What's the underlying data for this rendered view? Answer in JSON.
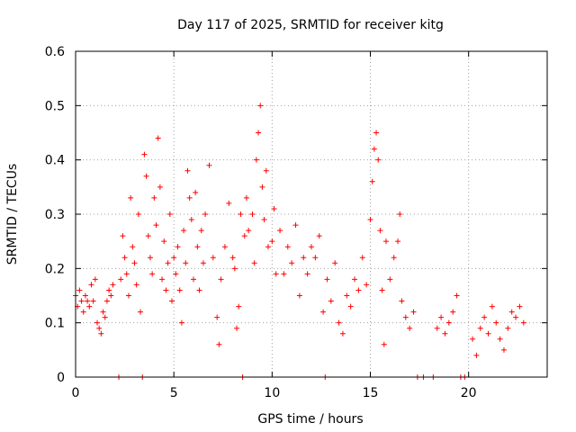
{
  "chart_data": {
    "type": "scatter",
    "title": "Day 117 of 2025, SRMTID for receiver kitg",
    "xlabel": "GPS time / hours",
    "ylabel": "SRMTID / TECUs",
    "xlim": [
      0,
      24
    ],
    "ylim": [
      0,
      0.6
    ],
    "xticks": [
      0,
      5,
      10,
      15,
      20
    ],
    "yticks": [
      0,
      0.1,
      0.2,
      0.3,
      0.4,
      0.5,
      0.6
    ],
    "xtick_labels": [
      "0",
      "5",
      "10",
      "15",
      "20"
    ],
    "ytick_labels": [
      "0",
      "0.1",
      "0.2",
      "0.3",
      "0.4",
      "0.5",
      "0.6"
    ],
    "grid": true,
    "marker": "+",
    "color": "#ff0000",
    "series": [
      {
        "name": "SRMTID",
        "points": [
          [
            0.0,
            0.15
          ],
          [
            0.1,
            0.13
          ],
          [
            0.2,
            0.16
          ],
          [
            0.3,
            0.14
          ],
          [
            0.4,
            0.12
          ],
          [
            0.5,
            0.15
          ],
          [
            0.6,
            0.14
          ],
          [
            0.7,
            0.13
          ],
          [
            0.8,
            0.17
          ],
          [
            0.9,
            0.14
          ],
          [
            1.0,
            0.18
          ],
          [
            1.1,
            0.1
          ],
          [
            1.2,
            0.09
          ],
          [
            1.3,
            0.08
          ],
          [
            1.4,
            0.12
          ],
          [
            1.5,
            0.11
          ],
          [
            1.6,
            0.14
          ],
          [
            1.7,
            0.16
          ],
          [
            1.8,
            0.15
          ],
          [
            1.9,
            0.17
          ],
          [
            2.2,
            0.0
          ],
          [
            2.3,
            0.18
          ],
          [
            2.4,
            0.26
          ],
          [
            2.5,
            0.22
          ],
          [
            2.6,
            0.19
          ],
          [
            2.7,
            0.15
          ],
          [
            2.8,
            0.33
          ],
          [
            2.9,
            0.24
          ],
          [
            3.0,
            0.21
          ],
          [
            3.1,
            0.17
          ],
          [
            3.2,
            0.3
          ],
          [
            3.3,
            0.12
          ],
          [
            3.4,
            0.0
          ],
          [
            3.5,
            0.41
          ],
          [
            3.6,
            0.37
          ],
          [
            3.7,
            0.26
          ],
          [
            3.8,
            0.22
          ],
          [
            3.9,
            0.19
          ],
          [
            4.0,
            0.33
          ],
          [
            4.1,
            0.28
          ],
          [
            4.2,
            0.44
          ],
          [
            4.3,
            0.35
          ],
          [
            4.4,
            0.18
          ],
          [
            4.5,
            0.25
          ],
          [
            4.6,
            0.16
          ],
          [
            4.7,
            0.21
          ],
          [
            4.8,
            0.3
          ],
          [
            4.9,
            0.14
          ],
          [
            5.0,
            0.22
          ],
          [
            5.1,
            0.19
          ],
          [
            5.2,
            0.24
          ],
          [
            5.3,
            0.16
          ],
          [
            5.4,
            0.1
          ],
          [
            5.5,
            0.27
          ],
          [
            5.6,
            0.21
          ],
          [
            5.7,
            0.38
          ],
          [
            5.8,
            0.33
          ],
          [
            5.9,
            0.29
          ],
          [
            6.0,
            0.18
          ],
          [
            6.1,
            0.34
          ],
          [
            6.2,
            0.24
          ],
          [
            6.3,
            0.16
          ],
          [
            6.4,
            0.27
          ],
          [
            6.5,
            0.21
          ],
          [
            6.6,
            0.3
          ],
          [
            6.8,
            0.39
          ],
          [
            7.0,
            0.22
          ],
          [
            7.2,
            0.11
          ],
          [
            7.3,
            0.06
          ],
          [
            7.4,
            0.18
          ],
          [
            7.6,
            0.24
          ],
          [
            7.8,
            0.32
          ],
          [
            8.0,
            0.22
          ],
          [
            8.1,
            0.2
          ],
          [
            8.2,
            0.09
          ],
          [
            8.3,
            0.13
          ],
          [
            8.4,
            0.3
          ],
          [
            8.5,
            0.0
          ],
          [
            8.6,
            0.26
          ],
          [
            8.7,
            0.33
          ],
          [
            8.8,
            0.27
          ],
          [
            9.0,
            0.3
          ],
          [
            9.1,
            0.21
          ],
          [
            9.2,
            0.4
          ],
          [
            9.3,
            0.45
          ],
          [
            9.4,
            0.5
          ],
          [
            9.5,
            0.35
          ],
          [
            9.6,
            0.29
          ],
          [
            9.7,
            0.38
          ],
          [
            9.8,
            0.24
          ],
          [
            10.0,
            0.25
          ],
          [
            10.1,
            0.31
          ],
          [
            10.2,
            0.19
          ],
          [
            10.4,
            0.27
          ],
          [
            10.6,
            0.19
          ],
          [
            10.8,
            0.24
          ],
          [
            11.0,
            0.21
          ],
          [
            11.2,
            0.28
          ],
          [
            11.4,
            0.15
          ],
          [
            11.6,
            0.22
          ],
          [
            11.8,
            0.19
          ],
          [
            12.0,
            0.24
          ],
          [
            12.2,
            0.22
          ],
          [
            12.4,
            0.26
          ],
          [
            12.6,
            0.12
          ],
          [
            12.7,
            0.0
          ],
          [
            12.8,
            0.18
          ],
          [
            13.0,
            0.14
          ],
          [
            13.2,
            0.21
          ],
          [
            13.4,
            0.1
          ],
          [
            13.6,
            0.08
          ],
          [
            13.8,
            0.15
          ],
          [
            14.0,
            0.13
          ],
          [
            14.2,
            0.18
          ],
          [
            14.4,
            0.16
          ],
          [
            14.6,
            0.22
          ],
          [
            14.8,
            0.17
          ],
          [
            15.0,
            0.29
          ],
          [
            15.1,
            0.36
          ],
          [
            15.2,
            0.42
          ],
          [
            15.3,
            0.45
          ],
          [
            15.4,
            0.4
          ],
          [
            15.5,
            0.27
          ],
          [
            15.6,
            0.16
          ],
          [
            15.7,
            0.06
          ],
          [
            15.8,
            0.25
          ],
          [
            16.0,
            0.18
          ],
          [
            16.2,
            0.22
          ],
          [
            16.4,
            0.25
          ],
          [
            16.5,
            0.3
          ],
          [
            16.6,
            0.14
          ],
          [
            16.8,
            0.11
          ],
          [
            17.0,
            0.09
          ],
          [
            17.2,
            0.12
          ],
          [
            17.4,
            0.0
          ],
          [
            17.7,
            0.0
          ],
          [
            18.2,
            0.0
          ],
          [
            18.4,
            0.09
          ],
          [
            18.6,
            0.11
          ],
          [
            18.8,
            0.08
          ],
          [
            19.0,
            0.1
          ],
          [
            19.2,
            0.12
          ],
          [
            19.4,
            0.15
          ],
          [
            19.6,
            0.0
          ],
          [
            19.8,
            0.0
          ],
          [
            20.2,
            0.07
          ],
          [
            20.4,
            0.04
          ],
          [
            20.6,
            0.09
          ],
          [
            20.8,
            0.11
          ],
          [
            21.0,
            0.08
          ],
          [
            21.2,
            0.13
          ],
          [
            21.4,
            0.1
          ],
          [
            21.6,
            0.07
          ],
          [
            21.8,
            0.05
          ],
          [
            22.0,
            0.09
          ],
          [
            22.2,
            0.12
          ],
          [
            22.4,
            0.11
          ],
          [
            22.6,
            0.13
          ],
          [
            22.8,
            0.1
          ]
        ]
      }
    ]
  }
}
